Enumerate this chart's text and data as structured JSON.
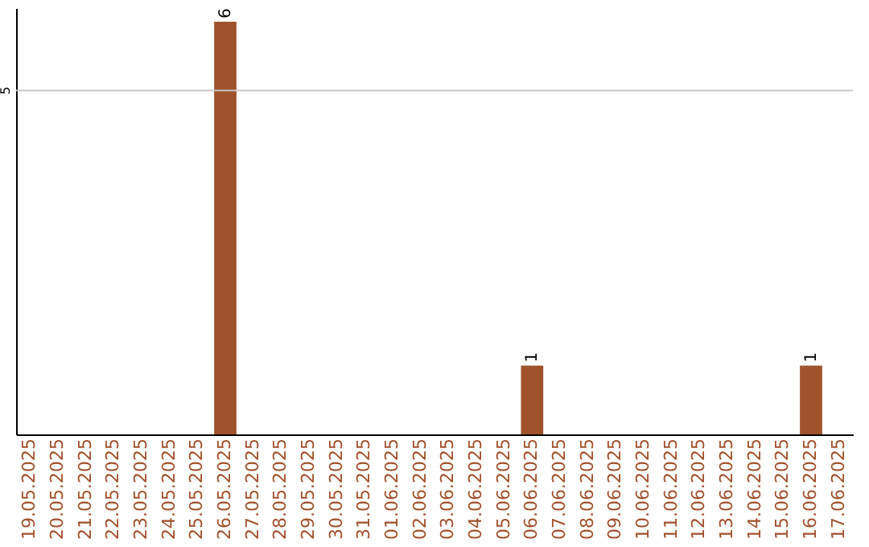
{
  "chart_data": {
    "type": "bar",
    "categories": [
      "19.05.2025",
      "20.05.2025",
      "21.05.2025",
      "22.05.2025",
      "23.05.2025",
      "24.05.2025",
      "25.05.2025",
      "26.05.2025",
      "27.05.2025",
      "28.05.2025",
      "29.05.2025",
      "30.05.2025",
      "31.05.2025",
      "01.06.2025",
      "02.06.2025",
      "03.06.2025",
      "04.06.2025",
      "05.06.2025",
      "06.06.2025",
      "07.06.2025",
      "08.06.2025",
      "09.06.2025",
      "10.06.2025",
      "11.06.2025",
      "12.06.2025",
      "13.06.2025",
      "14.06.2025",
      "15.06.2025",
      "16.06.2025",
      "17.06.2025"
    ],
    "values": [
      0,
      0,
      0,
      0,
      0,
      0,
      0,
      6,
      0,
      0,
      0,
      0,
      0,
      0,
      0,
      0,
      0,
      0,
      1,
      0,
      0,
      0,
      0,
      0,
      0,
      0,
      0,
      0,
      1,
      0
    ],
    "value_labels": [
      null,
      null,
      null,
      null,
      null,
      null,
      null,
      "6",
      null,
      null,
      null,
      null,
      null,
      null,
      null,
      null,
      null,
      null,
      "1",
      null,
      null,
      null,
      null,
      null,
      null,
      null,
      null,
      null,
      "1",
      null
    ],
    "color": "#a0522d",
    "ylim": [
      0,
      6.2
    ],
    "ref_lines": [
      {
        "axis": "y",
        "value": 5,
        "label": "5",
        "color": "#c8c8c8"
      }
    ]
  }
}
